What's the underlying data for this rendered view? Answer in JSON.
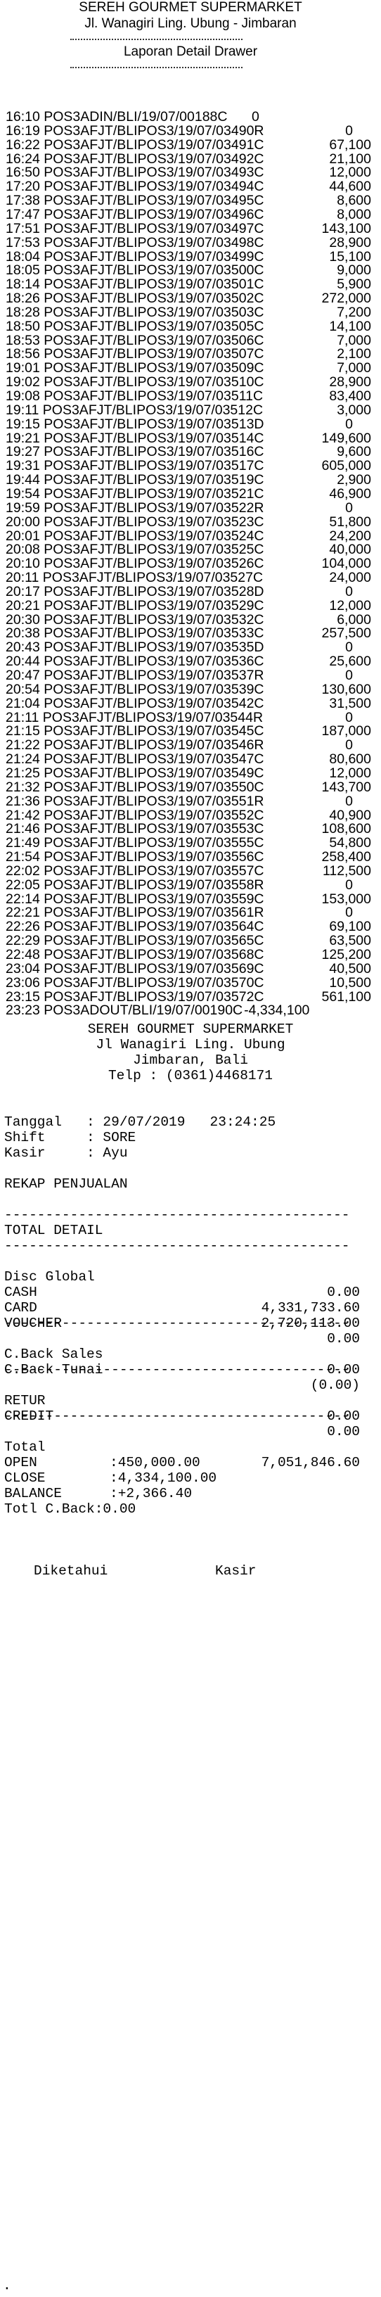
{
  "header": {
    "store_name": "SEREH GOURMET SUPERMARKET",
    "address": "Jl. Wanagiri Ling. Ubung - Jimbaran",
    "dashes": "------------------------------------",
    "report_title": "Laporan Detail Drawer"
  },
  "transactions": [
    {
      "time": "16:10",
      "ref": "POS3ADIN/BLI/19/07/00188C",
      "amount": "0"
    },
    {
      "time": "16:19",
      "ref": "POS3AFJT/BLIPOS3/19/07/03490R",
      "amount": "0"
    },
    {
      "time": "16:22",
      "ref": "POS3AFJT/BLIPOS3/19/07/03491C",
      "amount": "67,100"
    },
    {
      "time": "16:24",
      "ref": "POS3AFJT/BLIPOS3/19/07/03492C",
      "amount": "21,100"
    },
    {
      "time": "16:50",
      "ref": "POS3AFJT/BLIPOS3/19/07/03493C",
      "amount": "12,000"
    },
    {
      "time": "17:20",
      "ref": "POS3AFJT/BLIPOS3/19/07/03494C",
      "amount": "44,600"
    },
    {
      "time": "17:38",
      "ref": "POS3AFJT/BLIPOS3/19/07/03495C",
      "amount": "8,600"
    },
    {
      "time": "17:47",
      "ref": "POS3AFJT/BLIPOS3/19/07/03496C",
      "amount": "8,000"
    },
    {
      "time": "17:51",
      "ref": "POS3AFJT/BLIPOS3/19/07/03497C",
      "amount": "143,100"
    },
    {
      "time": "17:53",
      "ref": "POS3AFJT/BLIPOS3/19/07/03498C",
      "amount": "28,900"
    },
    {
      "time": "18:04",
      "ref": "POS3AFJT/BLIPOS3/19/07/03499C",
      "amount": "15,100"
    },
    {
      "time": "18:05",
      "ref": "POS3AFJT/BLIPOS3/19/07/03500C",
      "amount": "9,000"
    },
    {
      "time": "18:14",
      "ref": "POS3AFJT/BLIPOS3/19/07/03501C",
      "amount": "5,900"
    },
    {
      "time": "18:26",
      "ref": "POS3AFJT/BLIPOS3/19/07/03502C",
      "amount": "272,000"
    },
    {
      "time": "18:28",
      "ref": "POS3AFJT/BLIPOS3/19/07/03503C",
      "amount": "7,200"
    },
    {
      "time": "18:50",
      "ref": "POS3AFJT/BLIPOS3/19/07/03505C",
      "amount": "14,100"
    },
    {
      "time": "18:53",
      "ref": "POS3AFJT/BLIPOS3/19/07/03506C",
      "amount": "7,000"
    },
    {
      "time": "18:56",
      "ref": "POS3AFJT/BLIPOS3/19/07/03507C",
      "amount": "2,100"
    },
    {
      "time": "19:01",
      "ref": "POS3AFJT/BLIPOS3/19/07/03509C",
      "amount": "7,000"
    },
    {
      "time": "19:02",
      "ref": "POS3AFJT/BLIPOS3/19/07/03510C",
      "amount": "28,900"
    },
    {
      "time": "19:08",
      "ref": "POS3AFJT/BLIPOS3/19/07/03511C",
      "amount": "83,400"
    },
    {
      "time": "19:11",
      "ref": "POS3AFJT/BLIPOS3/19/07/03512C",
      "amount": "3,000"
    },
    {
      "time": "19:15",
      "ref": "POS3AFJT/BLIPOS3/19/07/03513D",
      "amount": "0"
    },
    {
      "time": "19:21",
      "ref": "POS3AFJT/BLIPOS3/19/07/03514C",
      "amount": "149,600"
    },
    {
      "time": "19:27",
      "ref": "POS3AFJT/BLIPOS3/19/07/03516C",
      "amount": "9,600"
    },
    {
      "time": "19:31",
      "ref": "POS3AFJT/BLIPOS3/19/07/03517C",
      "amount": "605,000"
    },
    {
      "time": "19:44",
      "ref": "POS3AFJT/BLIPOS3/19/07/03519C",
      "amount": "2,900"
    },
    {
      "time": "19:54",
      "ref": "POS3AFJT/BLIPOS3/19/07/03521C",
      "amount": "46,900"
    },
    {
      "time": "19:59",
      "ref": "POS3AFJT/BLIPOS3/19/07/03522R",
      "amount": "0"
    },
    {
      "time": "20:00",
      "ref": "POS3AFJT/BLIPOS3/19/07/03523C",
      "amount": "51,800"
    },
    {
      "time": "20:01",
      "ref": "POS3AFJT/BLIPOS3/19/07/03524C",
      "amount": "24,200"
    },
    {
      "time": "20:08",
      "ref": "POS3AFJT/BLIPOS3/19/07/03525C",
      "amount": "40,000"
    },
    {
      "time": "20:10",
      "ref": "POS3AFJT/BLIPOS3/19/07/03526C",
      "amount": "104,000"
    },
    {
      "time": "20:11",
      "ref": "POS3AFJT/BLIPOS3/19/07/03527C",
      "amount": "24,000"
    },
    {
      "time": "20:17",
      "ref": "POS3AFJT/BLIPOS3/19/07/03528D",
      "amount": "0"
    },
    {
      "time": "20:21",
      "ref": "POS3AFJT/BLIPOS3/19/07/03529C",
      "amount": "12,000"
    },
    {
      "time": "20:30",
      "ref": "POS3AFJT/BLIPOS3/19/07/03532C",
      "amount": "6,000"
    },
    {
      "time": "20:38",
      "ref": "POS3AFJT/BLIPOS3/19/07/03533C",
      "amount": "257,500"
    },
    {
      "time": "20:43",
      "ref": "POS3AFJT/BLIPOS3/19/07/03535D",
      "amount": "0"
    },
    {
      "time": "20:44",
      "ref": "POS3AFJT/BLIPOS3/19/07/03536C",
      "amount": "25,600"
    },
    {
      "time": "20:47",
      "ref": "POS3AFJT/BLIPOS3/19/07/03537R",
      "amount": "0"
    },
    {
      "time": "20:54",
      "ref": "POS3AFJT/BLIPOS3/19/07/03539C",
      "amount": "130,600"
    },
    {
      "time": "21:04",
      "ref": "POS3AFJT/BLIPOS3/19/07/03542C",
      "amount": "31,500"
    },
    {
      "time": "21:11",
      "ref": "POS3AFJT/BLIPOS3/19/07/03544R",
      "amount": "0"
    },
    {
      "time": "21:15",
      "ref": "POS3AFJT/BLIPOS3/19/07/03545C",
      "amount": "187,000"
    },
    {
      "time": "21:22",
      "ref": "POS3AFJT/BLIPOS3/19/07/03546R",
      "amount": "0"
    },
    {
      "time": "21:24",
      "ref": "POS3AFJT/BLIPOS3/19/07/03547C",
      "amount": "80,600"
    },
    {
      "time": "21:25",
      "ref": "POS3AFJT/BLIPOS3/19/07/03549C",
      "amount": "12,000"
    },
    {
      "time": "21:32",
      "ref": "POS3AFJT/BLIPOS3/19/07/03550C",
      "amount": "143,700"
    },
    {
      "time": "21:36",
      "ref": "POS3AFJT/BLIPOS3/19/07/03551R",
      "amount": "0"
    },
    {
      "time": "21:42",
      "ref": "POS3AFJT/BLIPOS3/19/07/03552C",
      "amount": "40,900"
    },
    {
      "time": "21:46",
      "ref": "POS3AFJT/BLIPOS3/19/07/03553C",
      "amount": "108,600"
    },
    {
      "time": "21:49",
      "ref": "POS3AFJT/BLIPOS3/19/07/03555C",
      "amount": "54,800"
    },
    {
      "time": "21:54",
      "ref": "POS3AFJT/BLIPOS3/19/07/03556C",
      "amount": "258,400"
    },
    {
      "time": "22:02",
      "ref": "POS3AFJT/BLIPOS3/19/07/03557C",
      "amount": "112,500"
    },
    {
      "time": "22:05",
      "ref": "POS3AFJT/BLIPOS3/19/07/03558R",
      "amount": "0"
    },
    {
      "time": "22:14",
      "ref": "POS3AFJT/BLIPOS3/19/07/03559C",
      "amount": "153,000"
    },
    {
      "time": "22:21",
      "ref": "POS3AFJT/BLIPOS3/19/07/03561R",
      "amount": "0"
    },
    {
      "time": "22:26",
      "ref": "POS3AFJT/BLIPOS3/19/07/03564C",
      "amount": "69,100"
    },
    {
      "time": "22:29",
      "ref": "POS3AFJT/BLIPOS3/19/07/03565C",
      "amount": "63,500"
    },
    {
      "time": "22:48",
      "ref": "POS3AFJT/BLIPOS3/19/07/03568C",
      "amount": "125,200"
    },
    {
      "time": "23:04",
      "ref": "POS3AFJT/BLIPOS3/19/07/03569C",
      "amount": "40,500"
    },
    {
      "time": "23:06",
      "ref": "POS3AFJT/BLIPOS3/19/07/03570C",
      "amount": "10,500"
    },
    {
      "time": "23:15",
      "ref": "POS3AFJT/BLIPOS3/19/07/03572C",
      "amount": "561,100"
    },
    {
      "time": "23:23",
      "ref": "POS3ADOUT/BLI/19/07/00190C",
      "amount": "-4,334,100"
    }
  ],
  "receipt_header": {
    "store_name": "SEREH GOURMET SUPERMARKET",
    "address_line1": "Jl Wanagiri Ling. Ubung",
    "address_line2": "Jimbaran, Bali",
    "phone": "Telp : (0361)4468171"
  },
  "info": {
    "date_line": "Tanggal   : 29/07/2019   23:24:25",
    "shift_line": "Shift     : SORE",
    "cashier_line": "Kasir     : Ayu"
  },
  "rekap_title": "REKAP PENJUALAN",
  "separator": "--------------------------------------------",
  "total_detail_title": "TOTAL DETAIL",
  "details": [
    {
      "label": "Disc Global",
      "value": "0.00"
    },
    {
      "label": "CASH",
      "value": "4,331,733.60"
    },
    {
      "label": "CARD",
      "value": "2,720,113.00"
    },
    {
      "label": "VOUCHER",
      "value": "0.00"
    }
  ],
  "cback": [
    {
      "label": "C.Back Sales",
      "value": "0.00"
    },
    {
      "label": "C.Back Tunai",
      "value": "(0.00)"
    }
  ],
  "retur": [
    {
      "label": "RETUR",
      "value": "0.00"
    },
    {
      "label": "CREDIT",
      "value": "0.00"
    }
  ],
  "total": {
    "label": "Total",
    "value": "7,051,846.60"
  },
  "drawer": [
    {
      "label": "OPEN",
      "value": ":450,000.00"
    },
    {
      "label": "CLOSE",
      "value": ":4,334,100.00"
    },
    {
      "label": "BALANCE",
      "value": ":+2,366.40"
    }
  ],
  "totl_cback": "Totl C.Back:0.00",
  "signature": {
    "left": "Diketahui",
    "right": "Kasir"
  },
  "footer_dot": "."
}
